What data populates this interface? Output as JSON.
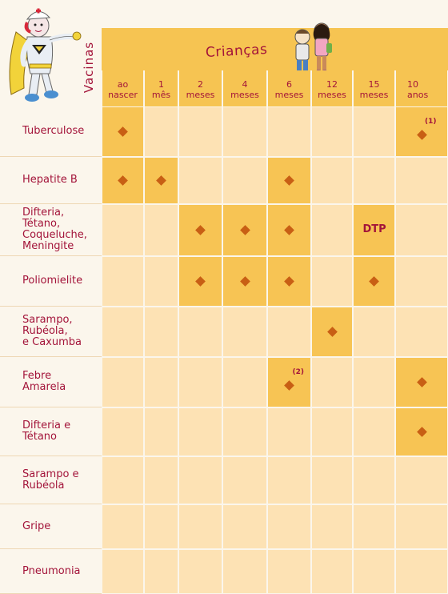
{
  "header": {
    "vacinas_label": "Vacinas",
    "criancas_label": "Crianças"
  },
  "columns": [
    {
      "l1": "ao",
      "l2": "nascer"
    },
    {
      "l1": "1",
      "l2": "mês"
    },
    {
      "l1": "2",
      "l2": "meses"
    },
    {
      "l1": "4",
      "l2": "meses"
    },
    {
      "l1": "6",
      "l2": "meses"
    },
    {
      "l1": "12",
      "l2": "meses"
    },
    {
      "l1": "15",
      "l2": "meses"
    },
    {
      "l1": "10",
      "l2": "anos"
    }
  ],
  "rows": [
    {
      "label": "Tuberculose",
      "doses": [
        0,
        7
      ],
      "notes": {
        "7": "(1)"
      }
    },
    {
      "label": "Hepatite B",
      "doses": [
        0,
        1,
        4
      ]
    },
    {
      "label": "Difteria,\nTétano,\nCoqueluche,\nMeningite",
      "doses": [
        2,
        3,
        4
      ],
      "text_cells": {
        "6": "DTP"
      }
    },
    {
      "label": "Poliomielite",
      "doses": [
        2,
        3,
        4,
        6
      ]
    },
    {
      "label": "Sarampo,\nRubéola,\ne Caxumba",
      "doses": [
        5
      ]
    },
    {
      "label": "Febre\nAmarela",
      "doses": [
        4,
        7
      ],
      "notes": {
        "4": "(2)"
      }
    },
    {
      "label": "Difteria e\nTétano",
      "doses": [
        7
      ]
    },
    {
      "label": "Sarampo e\nRubéola",
      "doses": []
    },
    {
      "label": "Gripe",
      "doses": []
    },
    {
      "label": "Pneumonia",
      "doses": []
    }
  ],
  "colors": {
    "header_band": "#f6c452",
    "cell_empty": "#fde2b4",
    "cell_dose": "#f7c454",
    "diamond": "#c85f14",
    "text": "#a3143a",
    "background": "#fbf6ec"
  }
}
